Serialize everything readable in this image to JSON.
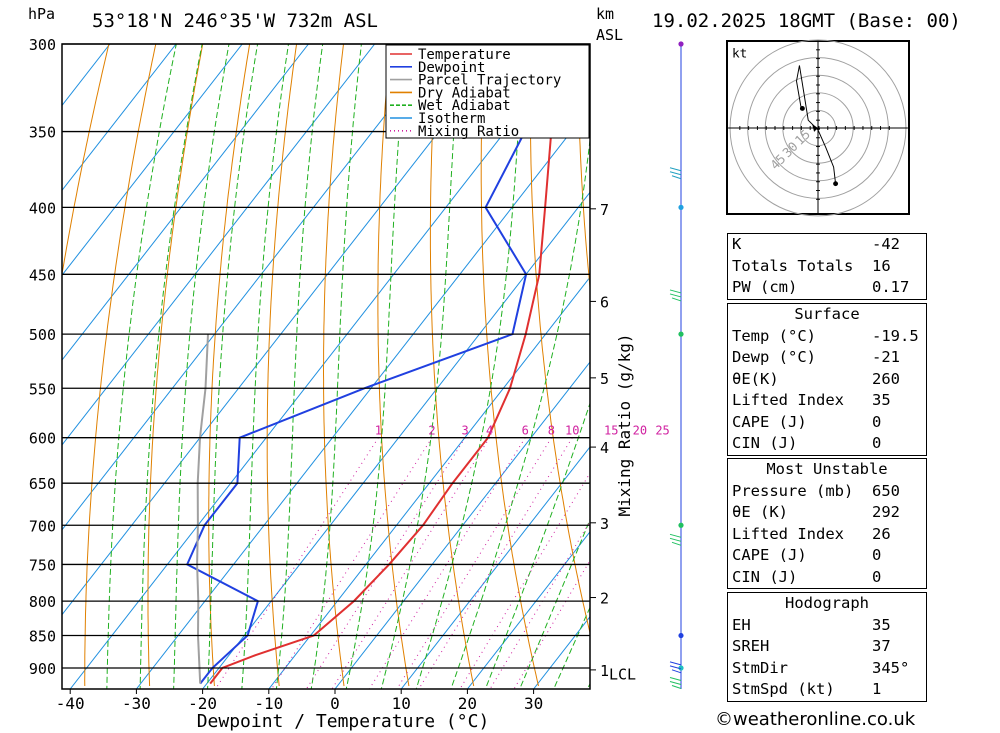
{
  "header": {
    "pressure_unit": "hPa",
    "location": "53°18'N 246°35'W 732m ASL",
    "height_unit": "km",
    "height_unit2": "ASL",
    "datetime": "19.02.2025 18GMT (Base: 00)"
  },
  "chart_data": {
    "type": "line",
    "xlabel": "Dewpoint / Temperature (°C)",
    "ylabel": "hPa",
    "mixing_ratio_label": "Mixing Ratio (g/kg)",
    "x_ticks": [
      "-40",
      "-30",
      "-20",
      "-10",
      "0",
      "10",
      "20",
      "30"
    ],
    "x_tick_values": [
      -40,
      -30,
      -20,
      -10,
      0,
      10,
      20,
      30
    ],
    "pressure_levels": [
      300,
      350,
      400,
      450,
      500,
      550,
      600,
      650,
      700,
      750,
      800,
      850,
      900
    ],
    "km_labels": [
      {
        "km": "7",
        "p": 401
      },
      {
        "km": "6",
        "p": 472
      },
      {
        "km": "5",
        "p": 540
      },
      {
        "km": "4",
        "p": 610
      },
      {
        "km": "3",
        "p": 697
      },
      {
        "km": "2",
        "p": 795
      },
      {
        "km": "1",
        "p": 903
      }
    ],
    "lcl_label": "LCL",
    "lcl_pressure": 910,
    "mixing_ratio_values": [
      "1",
      "2",
      "3",
      "4",
      "6",
      "8",
      "10",
      "15",
      "20",
      "25"
    ],
    "legend": [
      {
        "name": "Temperature",
        "color": "#e03030",
        "style": "solid"
      },
      {
        "name": "Dewpoint",
        "color": "#2040e0",
        "style": "solid"
      },
      {
        "name": "Parcel Trajectory",
        "color": "#a0a0a0",
        "style": "solid"
      },
      {
        "name": "Dry Adiabat",
        "color": "#e08000",
        "style": "solid"
      },
      {
        "name": "Wet Adiabat",
        "color": "#20b020",
        "style": "dashed"
      },
      {
        "name": "Isotherm",
        "color": "#2090e0",
        "style": "solid"
      },
      {
        "name": "Mixing Ratio",
        "color": "#d020a0",
        "style": "dotted"
      }
    ],
    "series": [
      {
        "name": "Temperature",
        "color": "#e03030",
        "points": [
          [
            925,
            -19.5
          ],
          [
            900,
            -19.5
          ],
          [
            880,
            -16
          ],
          [
            850,
            -9.5
          ],
          [
            800,
            -7.5
          ],
          [
            750,
            -6.5
          ],
          [
            700,
            -6
          ],
          [
            650,
            -6.5
          ],
          [
            600,
            -6.5
          ],
          [
            550,
            -9
          ],
          [
            500,
            -13
          ],
          [
            450,
            -18
          ],
          [
            400,
            -25
          ],
          [
            350,
            -33
          ],
          [
            300,
            -42
          ]
        ]
      },
      {
        "name": "Dewpoint",
        "color": "#2040e0",
        "points": [
          [
            925,
            -21
          ],
          [
            900,
            -21
          ],
          [
            850,
            -19.5
          ],
          [
            800,
            -22
          ],
          [
            750,
            -37
          ],
          [
            700,
            -39
          ],
          [
            650,
            -39
          ],
          [
            600,
            -44
          ],
          [
            550,
            -31
          ],
          [
            500,
            -15
          ],
          [
            450,
            -20
          ],
          [
            400,
            -34
          ],
          [
            350,
            -37
          ],
          [
            300,
            -43
          ]
        ]
      },
      {
        "name": "Parcel Trajectory",
        "color": "#a0a0a0",
        "points": [
          [
            925,
            -21
          ],
          [
            850,
            -27
          ],
          [
            800,
            -31
          ],
          [
            750,
            -35.5
          ],
          [
            700,
            -40
          ],
          [
            650,
            -45
          ],
          [
            600,
            -50
          ],
          [
            550,
            -55
          ],
          [
            500,
            -61
          ]
        ]
      }
    ]
  },
  "indices": {
    "rows": [
      {
        "label": "K",
        "value": "-42"
      },
      {
        "label": "Totals Totals",
        "value": "16"
      },
      {
        "label": "PW (cm)",
        "value": "0.17"
      }
    ]
  },
  "surface": {
    "title": "Surface",
    "rows": [
      {
        "label": "Temp (°C)",
        "value": "-19.5"
      },
      {
        "label": "Dewp (°C)",
        "value": "-21"
      },
      {
        "label": "θE(K)",
        "value": "260"
      },
      {
        "label": "Lifted Index",
        "value": "35"
      },
      {
        "label": "CAPE (J)",
        "value": "0"
      },
      {
        "label": "CIN (J)",
        "value": "0"
      }
    ]
  },
  "most_unstable": {
    "title": "Most Unstable",
    "rows": [
      {
        "label": "Pressure (mb)",
        "value": "650"
      },
      {
        "label": "θE (K)",
        "value": "292"
      },
      {
        "label": "Lifted Index",
        "value": "26"
      },
      {
        "label": "CAPE (J)",
        "value": "0"
      },
      {
        "label": "CIN (J)",
        "value": "0"
      }
    ]
  },
  "hodograph": {
    "title": "Hodograph",
    "unit_label": "kt",
    "ring_labels": [
      "15",
      "30",
      "45"
    ],
    "rows": [
      {
        "label": "EH",
        "value": "35"
      },
      {
        "label": "SREH",
        "value": "37"
      },
      {
        "label": "StmDir",
        "value": "345°"
      },
      {
        "label": "StmSpd (kt)",
        "value": "1"
      }
    ]
  },
  "footer": {
    "site": "weatheronline.co.uk",
    "copyright_icon": "copyright-icon"
  }
}
